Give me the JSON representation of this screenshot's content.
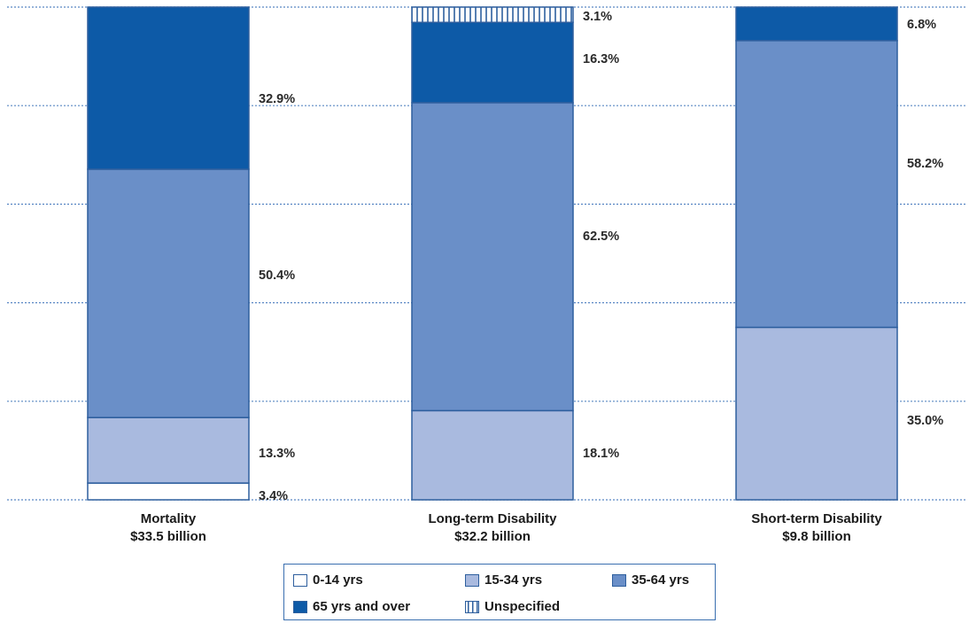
{
  "chart_data": {
    "type": "bar",
    "stacked": true,
    "normalized_to": 100,
    "grid": "horizontal dotted",
    "categories": [
      {
        "name": "Mortality",
        "total": "$33.5 billion"
      },
      {
        "name": "Long-term Disability",
        "total": "$32.2 billion"
      },
      {
        "name": "Short-term Disability",
        "total": "$9.8 billion"
      }
    ],
    "series": [
      {
        "name": "0-14 yrs",
        "color": "#ffffff",
        "values": [
          3.4,
          0,
          0
        ],
        "labels": [
          "3.4%",
          "",
          ""
        ]
      },
      {
        "name": "15-34 yrs",
        "color": "#a9badf",
        "values": [
          13.3,
          18.1,
          35.0
        ],
        "labels": [
          "13.3%",
          "18.1%",
          "35.0%"
        ]
      },
      {
        "name": "35-64 yrs",
        "color": "#6a8fc8",
        "values": [
          50.4,
          62.5,
          58.2
        ],
        "labels": [
          "50.4%",
          "62.5%",
          "58.2%"
        ]
      },
      {
        "name": "65 yrs and over",
        "color": "#0d5aa7",
        "values": [
          32.9,
          16.3,
          6.8
        ],
        "labels": [
          "32.9%",
          "16.3%",
          "6.8%"
        ]
      },
      {
        "name": "Unspecified",
        "color": "hatched",
        "values": [
          0,
          3.1,
          0
        ],
        "labels": [
          "",
          "3.1%",
          ""
        ]
      }
    ],
    "legend_position": "bottom"
  },
  "colors": {
    "outline": "#2e5f9e",
    "grid": "#5a88c4"
  }
}
